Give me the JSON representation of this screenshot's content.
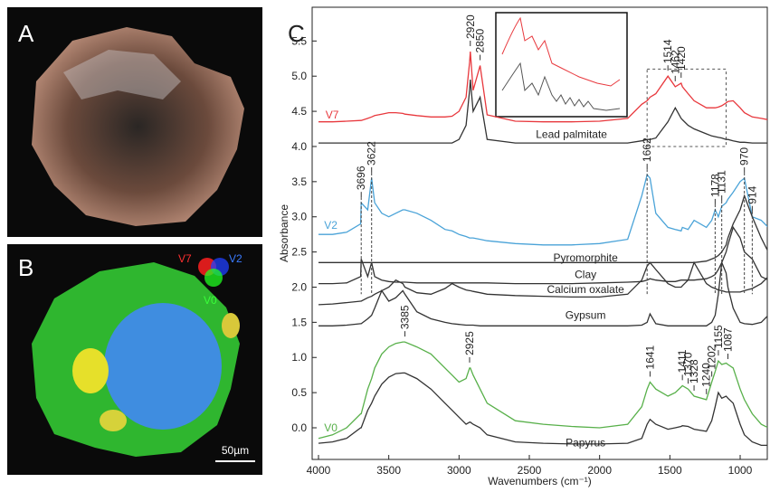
{
  "panels": {
    "a": "A",
    "b": "B",
    "v7": "V7",
    "v2": "V2",
    "v0": "V0",
    "scale": "50µm"
  },
  "chart_data": {
    "type": "line",
    "label": "C",
    "ylabel": "Absorbance",
    "xlabel": "Wavenumbers (cm⁻¹)",
    "xlim": [
      4045,
      807
    ],
    "ylim": [
      -0.45,
      5.98
    ],
    "xticks": [
      4000,
      3500,
      3000,
      2500,
      2000,
      1500,
      1000
    ],
    "yticks": [
      {
        "value": 0,
        "label": "0.0"
      },
      {
        "value": 0.5,
        "label": "0.5"
      },
      {
        "value": 1,
        "label": "1.0"
      },
      {
        "value": 1.5,
        "label": "1.5"
      },
      {
        "value": 2,
        "label": "2.0"
      },
      {
        "value": 2.5,
        "label": "2.5"
      },
      {
        "value": 3,
        "label": "3.0"
      },
      {
        "value": 3.5,
        "label": "3.5"
      },
      {
        "value": 4,
        "label": "4.0"
      },
      {
        "value": 4.5,
        "label": "4.5"
      },
      {
        "value": 5,
        "label": "5.0"
      },
      {
        "value": 5.5,
        "label": "5.5"
      }
    ],
    "x": [
      4000,
      3900,
      3800,
      3700,
      3696,
      3650,
      3622,
      3600,
      3550,
      3500,
      3450,
      3400,
      3385,
      3300,
      3200,
      3100,
      3050,
      3000,
      2950,
      2925,
      2920,
      2900,
      2850,
      2800,
      2600,
      2400,
      2200,
      2000,
      1800,
      1700,
      1662,
      1641,
      1600,
      1514,
      1462,
      1420,
      1411,
      1370,
      1328,
      1240,
      1202,
      1178,
      1155,
      1131,
      1100,
      1087,
      1050,
      1000,
      970,
      914,
      850,
      800
    ],
    "series": [
      {
        "name": "V7",
        "color": "#e8383d",
        "peaks": [
          2920,
          2850,
          1514,
          1462,
          1420
        ],
        "values": [
          4.35,
          4.35,
          4.36,
          4.37,
          4.37,
          4.4,
          4.42,
          4.44,
          4.46,
          4.48,
          4.48,
          4.47,
          4.46,
          4.44,
          4.42,
          4.42,
          4.43,
          4.5,
          4.7,
          5.2,
          5.35,
          4.8,
          5.15,
          4.45,
          4.36,
          4.35,
          4.35,
          4.36,
          4.4,
          4.6,
          4.65,
          4.7,
          4.75,
          5.0,
          4.85,
          4.9,
          4.85,
          4.75,
          4.65,
          4.55,
          4.55,
          4.55,
          4.56,
          4.58,
          4.62,
          4.64,
          4.65,
          4.55,
          4.48,
          4.42,
          4.4,
          4.38
        ]
      },
      {
        "name": "Lead palmitate",
        "color": "#333333",
        "values": [
          4.05,
          4.05,
          4.05,
          4.05,
          4.05,
          4.05,
          4.05,
          4.05,
          4.05,
          4.05,
          4.05,
          4.05,
          4.05,
          4.05,
          4.05,
          4.05,
          4.05,
          4.1,
          4.3,
          4.8,
          4.95,
          4.5,
          4.7,
          4.1,
          4.05,
          4.05,
          4.05,
          4.05,
          4.05,
          4.08,
          4.1,
          4.1,
          4.12,
          4.35,
          4.55,
          4.4,
          4.38,
          4.3,
          4.25,
          4.18,
          4.15,
          4.14,
          4.13,
          4.12,
          4.1,
          4.1,
          4.08,
          4.06,
          4.06,
          4.05,
          4.05,
          4.05
        ]
      },
      {
        "name": "V2",
        "color": "#4aa3d8",
        "peaks": [
          3696,
          3622,
          1662,
          1178,
          1131,
          970,
          914
        ],
        "values": [
          2.75,
          2.75,
          2.78,
          2.9,
          3.2,
          3.1,
          3.55,
          3.2,
          3.05,
          3.0,
          3.05,
          3.1,
          3.1,
          3.05,
          2.95,
          2.82,
          2.8,
          2.75,
          2.72,
          2.7,
          2.7,
          2.7,
          2.68,
          2.66,
          2.62,
          2.6,
          2.6,
          2.62,
          2.68,
          3.3,
          3.6,
          3.55,
          3.05,
          2.85,
          2.82,
          2.8,
          2.85,
          2.82,
          2.95,
          2.85,
          2.95,
          3.1,
          3.0,
          3.15,
          3.2,
          3.25,
          3.35,
          3.5,
          3.55,
          3.0,
          2.95,
          2.85
        ]
      },
      {
        "name": "Pyromorphite",
        "color": "#333333",
        "values": [
          2.35,
          2.35,
          2.35,
          2.35,
          2.35,
          2.35,
          2.35,
          2.35,
          2.35,
          2.35,
          2.35,
          2.35,
          2.35,
          2.35,
          2.35,
          2.35,
          2.35,
          2.35,
          2.35,
          2.35,
          2.35,
          2.35,
          2.35,
          2.35,
          2.35,
          2.35,
          2.35,
          2.35,
          2.35,
          2.35,
          2.35,
          2.35,
          2.35,
          2.35,
          2.35,
          2.35,
          2.35,
          2.35,
          2.35,
          2.37,
          2.4,
          2.42,
          2.45,
          2.5,
          2.6,
          2.7,
          2.9,
          3.1,
          3.3,
          3.0,
          2.7,
          2.5
        ]
      },
      {
        "name": "Clay",
        "color": "#333333",
        "values": [
          2.05,
          2.05,
          2.06,
          2.15,
          2.4,
          2.15,
          2.35,
          2.15,
          2.1,
          2.08,
          2.07,
          2.07,
          2.07,
          2.06,
          2.06,
          2.06,
          2.06,
          2.06,
          2.06,
          2.06,
          2.06,
          2.06,
          2.06,
          2.06,
          2.05,
          2.05,
          2.05,
          2.06,
          2.07,
          2.08,
          2.1,
          2.12,
          2.1,
          2.08,
          2.08,
          2.1,
          2.1,
          2.1,
          2.1,
          2.12,
          2.15,
          2.18,
          2.25,
          2.35,
          2.5,
          2.6,
          2.85,
          2.7,
          2.5,
          2.4,
          2.15,
          2.1
        ]
      },
      {
        "name": "Calcium oxalate",
        "color": "#333333",
        "values": [
          1.75,
          1.76,
          1.78,
          1.8,
          1.8,
          1.85,
          1.87,
          1.9,
          1.95,
          2.0,
          2.1,
          2.05,
          2.0,
          1.92,
          1.9,
          1.98,
          2.05,
          2.0,
          1.96,
          1.95,
          1.95,
          1.94,
          1.92,
          1.9,
          1.88,
          1.87,
          1.86,
          1.86,
          1.9,
          2.1,
          2.3,
          2.35,
          2.25,
          2.05,
          2.0,
          2.0,
          2.02,
          2.1,
          2.35,
          2.05,
          2.0,
          1.98,
          1.96,
          1.95,
          1.93,
          1.93,
          1.93,
          1.93,
          1.95,
          1.98,
          2.05,
          2.15
        ]
      },
      {
        "name": "Gypsum",
        "color": "#333333",
        "values": [
          1.45,
          1.45,
          1.46,
          1.48,
          1.48,
          1.55,
          1.6,
          1.7,
          1.95,
          1.8,
          1.85,
          1.95,
          1.9,
          1.65,
          1.55,
          1.5,
          1.48,
          1.47,
          1.46,
          1.46,
          1.46,
          1.46,
          1.45,
          1.45,
          1.45,
          1.45,
          1.45,
          1.45,
          1.45,
          1.46,
          1.5,
          1.62,
          1.48,
          1.45,
          1.45,
          1.45,
          1.45,
          1.45,
          1.45,
          1.45,
          1.5,
          1.6,
          1.9,
          2.35,
          2.2,
          2.0,
          1.7,
          1.5,
          1.48,
          1.47,
          1.5,
          1.6
        ]
      },
      {
        "name": "V0",
        "color": "#58b04a",
        "peaks": [
          3385,
          2925,
          1641,
          1411,
          1370,
          1328,
          1240,
          1202,
          1155,
          1087
        ],
        "values": [
          -0.15,
          -0.1,
          0.0,
          0.2,
          0.2,
          0.55,
          0.7,
          0.85,
          1.05,
          1.15,
          1.2,
          1.22,
          1.22,
          1.15,
          1.05,
          0.85,
          0.75,
          0.65,
          0.7,
          0.85,
          0.85,
          0.75,
          0.55,
          0.35,
          0.1,
          0.05,
          0.02,
          0.0,
          0.05,
          0.3,
          0.55,
          0.65,
          0.55,
          0.45,
          0.5,
          0.58,
          0.6,
          0.55,
          0.45,
          0.4,
          0.65,
          0.8,
          0.95,
          0.9,
          0.92,
          0.9,
          0.85,
          0.55,
          0.4,
          0.2,
          0.05,
          0.0
        ]
      },
      {
        "name": "Papyrus",
        "color": "#333333",
        "values": [
          -0.22,
          -0.2,
          -0.15,
          0.0,
          0.0,
          0.25,
          0.35,
          0.45,
          0.62,
          0.72,
          0.77,
          0.78,
          0.78,
          0.7,
          0.55,
          0.35,
          0.25,
          0.15,
          0.05,
          0.08,
          0.08,
          0.05,
          0.0,
          -0.1,
          -0.2,
          -0.22,
          -0.23,
          -0.23,
          -0.22,
          -0.15,
          0.05,
          0.12,
          0.05,
          -0.02,
          0.0,
          0.02,
          0.03,
          0.02,
          -0.02,
          -0.05,
          0.1,
          0.3,
          0.5,
          0.42,
          0.45,
          0.42,
          0.35,
          0.05,
          -0.1,
          -0.2,
          -0.25,
          -0.25
        ]
      }
    ]
  }
}
